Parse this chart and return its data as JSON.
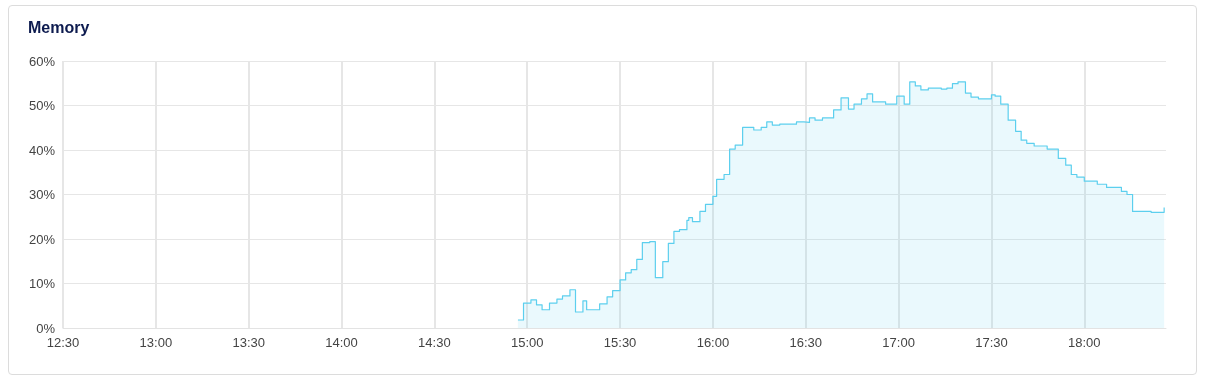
{
  "chart_data": {
    "type": "area",
    "title": "Memory",
    "color": "#5ccfee",
    "grid": true,
    "marker": "none",
    "xlim": [
      12.5,
      18.44
    ],
    "xticks": [
      {
        "value": 12.5,
        "label": "12:30"
      },
      {
        "value": 13,
        "label": "13:00"
      },
      {
        "value": 13.5,
        "label": "13:30"
      },
      {
        "value": 14,
        "label": "14:00"
      },
      {
        "value": 14.5,
        "label": "14:30"
      },
      {
        "value": 15,
        "label": "15:00"
      },
      {
        "value": 15.5,
        "label": "15:30"
      },
      {
        "value": 16,
        "label": "16:00"
      },
      {
        "value": 16.5,
        "label": "16:30"
      },
      {
        "value": 17,
        "label": "17:00"
      },
      {
        "value": 17.5,
        "label": "17:30"
      },
      {
        "value": 18,
        "label": "18:00"
      }
    ],
    "ylim": [
      0,
      60
    ],
    "yticks": [
      {
        "value": 0,
        "label": "0%"
      },
      {
        "value": 10,
        "label": "10%"
      },
      {
        "value": 20,
        "label": "20%"
      },
      {
        "value": 30,
        "label": "30%"
      },
      {
        "value": 40,
        "label": "40%"
      },
      {
        "value": 50,
        "label": "50%"
      },
      {
        "value": 60,
        "label": "60%"
      }
    ],
    "x": [
      14.95,
      14.98,
      14.98,
      15.02,
      15.02,
      15.05,
      15.05,
      15.08,
      15.08,
      15.12,
      15.12,
      15.16,
      15.16,
      15.19,
      15.19,
      15.23,
      15.23,
      15.26,
      15.26,
      15.3,
      15.3,
      15.32,
      15.32,
      15.39,
      15.39,
      15.43,
      15.43,
      15.46,
      15.46,
      15.5,
      15.5,
      15.53,
      15.53,
      15.56,
      15.56,
      15.59,
      15.59,
      15.62,
      15.62,
      15.66,
      15.66,
      15.69,
      15.69,
      15.73,
      15.73,
      15.76,
      15.76,
      15.79,
      15.79,
      15.82,
      15.82,
      15.86,
      15.86,
      15.87,
      15.87,
      15.89,
      15.89,
      15.93,
      15.93,
      15.96,
      15.96,
      16.0,
      16.0,
      16.02,
      16.02,
      16.06,
      16.06,
      16.09,
      16.09,
      16.12,
      16.12,
      16.16,
      16.16,
      16.22,
      16.22,
      16.26,
      16.26,
      16.29,
      16.29,
      16.32,
      16.32,
      16.36,
      16.36,
      16.45,
      16.45,
      16.49,
      16.49,
      16.52,
      16.52,
      16.55,
      16.55,
      16.59,
      16.59,
      16.65,
      16.65,
      16.69,
      16.69,
      16.73,
      16.73,
      16.76,
      16.76,
      16.8,
      16.8,
      16.83,
      16.83,
      16.86,
      16.86,
      16.93,
      16.93,
      16.99,
      16.99,
      17.03,
      17.03,
      17.06,
      17.06,
      17.09,
      17.09,
      17.12,
      17.12,
      17.16,
      17.16,
      17.23,
      17.23,
      17.26,
      17.26,
      17.29,
      17.29,
      17.32,
      17.32,
      17.36,
      17.36,
      17.39,
      17.39,
      17.43,
      17.43,
      17.5,
      17.5,
      17.52,
      17.52,
      17.55,
      17.55,
      17.59,
      17.59,
      17.63,
      17.63,
      17.66,
      17.66,
      17.69,
      17.69,
      17.73,
      17.73,
      17.8,
      17.8,
      17.86,
      17.86,
      17.9,
      17.9,
      17.93,
      17.93,
      17.96,
      17.96,
      18.0,
      18.0,
      18.07,
      18.07,
      18.12,
      18.12,
      18.2,
      18.2,
      18.23,
      18.23,
      18.26,
      18.26,
      18.36,
      18.36,
      18.43,
      18.43
    ],
    "values": [
      1.8,
      1.8,
      5.6,
      5.6,
      6.3,
      6.3,
      5.2,
      5.2,
      4.1,
      4.1,
      5.6,
      5.6,
      6.5,
      6.5,
      7.2,
      7.2,
      8.6,
      8.6,
      3.6,
      3.6,
      6.1,
      6.1,
      4.1,
      4.1,
      5.4,
      5.4,
      7.0,
      7.0,
      8.4,
      8.4,
      10.8,
      10.8,
      12.4,
      12.4,
      13.1,
      13.1,
      15.4,
      15.4,
      19.2,
      19.2,
      19.4,
      19.4,
      11.3,
      11.3,
      14.9,
      14.9,
      19.0,
      19.0,
      21.7,
      21.7,
      22.1,
      22.1,
      24.2,
      24.2,
      24.8,
      24.8,
      23.9,
      23.9,
      26.2,
      26.2,
      27.8,
      27.8,
      29.6,
      29.6,
      33.4,
      33.4,
      34.5,
      34.5,
      40.2,
      40.2,
      41.1,
      41.1,
      45.1,
      45.1,
      44.5,
      44.5,
      45.1,
      45.1,
      46.3,
      46.3,
      45.6,
      45.6,
      45.8,
      45.8,
      46.3,
      46.3,
      46.2,
      46.2,
      47.2,
      47.2,
      46.7,
      46.7,
      47.2,
      47.2,
      49.0,
      49.0,
      51.7,
      51.7,
      49.2,
      49.2,
      50.3,
      50.3,
      51.5,
      51.5,
      52.6,
      52.6,
      50.8,
      50.8,
      50.3,
      50.3,
      52.1,
      52.1,
      50.3,
      50.3,
      55.3,
      55.3,
      54.4,
      54.4,
      53.5,
      53.5,
      53.9,
      53.9,
      53.7,
      53.7,
      53.9,
      53.9,
      54.9,
      54.9,
      55.3,
      55.3,
      52.8,
      52.8,
      51.9,
      51.9,
      51.5,
      51.5,
      52.4,
      52.4,
      52.1,
      52.1,
      50.3,
      50.3,
      46.7,
      46.7,
      44.2,
      44.2,
      42.2,
      42.2,
      41.5,
      41.5,
      40.9,
      40.9,
      40.2,
      40.2,
      38.1,
      38.1,
      36.6,
      36.6,
      34.5,
      34.5,
      33.9,
      33.9,
      33.0,
      33.0,
      32.3,
      32.3,
      31.6,
      31.6,
      30.7,
      30.7,
      30.0,
      30.0,
      26.2,
      26.2,
      26.0,
      26.0,
      27.1
    ]
  }
}
